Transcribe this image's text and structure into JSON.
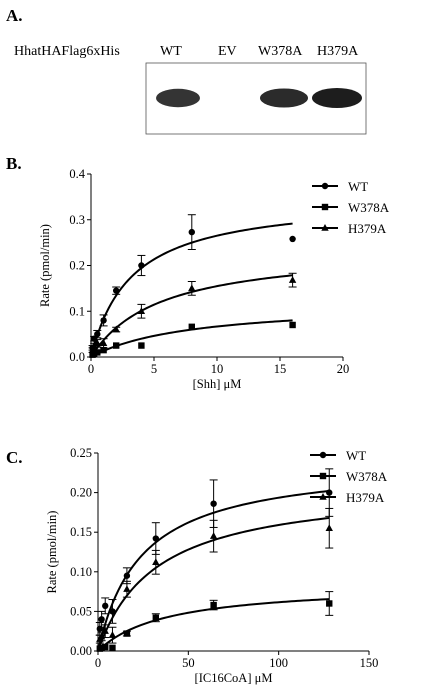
{
  "panel_a": {
    "label": "A.",
    "construct": "HhatHAFlag6xHis",
    "lanes": [
      "WT",
      "EV",
      "W378A",
      "H379A"
    ],
    "band_intensity": [
      0.75,
      0.0,
      0.85,
      1.0
    ]
  },
  "chart_data": [
    {
      "panel": "B.",
      "type": "scatter",
      "xlabel": "[Shh] μM",
      "ylabel": "Rate (pmol/min)",
      "xlim": [
        0,
        20
      ],
      "ylim": [
        0,
        0.4
      ],
      "xticks": [
        0,
        5,
        10,
        15,
        20
      ],
      "yticks": [
        0,
        0.1,
        0.2,
        0.3,
        0.4
      ],
      "ytick_labels": [
        "0.0",
        "0.1",
        "0.2",
        "0.3",
        "0.4"
      ],
      "legend_position": "top-right",
      "series": [
        {
          "name": "WT",
          "marker": "circle",
          "x": [
            0.125,
            0.25,
            0.5,
            1,
            2,
            4,
            8,
            16
          ],
          "y": [
            0.02,
            0.04,
            0.05,
            0.08,
            0.145,
            0.2,
            0.273,
            0.258
          ],
          "err": [
            0.005,
            0.005,
            0.008,
            0.012,
            0.008,
            0.022,
            0.038,
            0
          ],
          "vmax": 0.35,
          "km": 3.2
        },
        {
          "name": "W378A",
          "marker": "square",
          "x": [
            0.125,
            0.25,
            0.5,
            1,
            2,
            4,
            8,
            16
          ],
          "y": [
            0.005,
            0.008,
            0.01,
            0.015,
            0.025,
            0.025,
            0.066,
            0.07
          ],
          "err": [
            0,
            0,
            0,
            0,
            0,
            0,
            0,
            0
          ],
          "vmax": 0.12,
          "km": 8
        },
        {
          "name": "H379A",
          "marker": "triangle",
          "x": [
            0.125,
            0.25,
            0.5,
            1,
            2,
            4,
            8,
            16
          ],
          "y": [
            0.015,
            0.025,
            0.03,
            0.03,
            0.06,
            0.1,
            0.15,
            0.168
          ],
          "err": [
            0.005,
            0.005,
            0.008,
            0.01,
            0.005,
            0.015,
            0.015,
            0.015
          ],
          "vmax": 0.24,
          "km": 5.5
        }
      ]
    },
    {
      "panel": "C.",
      "type": "scatter",
      "xlabel": "[IC16CoA] μM",
      "ylabel": "Rate (pmol/min)",
      "xlim": [
        0,
        150
      ],
      "ylim": [
        0,
        0.25
      ],
      "xticks": [
        0,
        50,
        100,
        150
      ],
      "yticks": [
        0,
        0.05,
        0.1,
        0.15,
        0.2,
        0.25
      ],
      "ytick_labels": [
        "0.00",
        "0.05",
        "0.10",
        "0.15",
        "0.20",
        "0.25"
      ],
      "legend_position": "top-right",
      "series": [
        {
          "name": "WT",
          "marker": "circle",
          "x": [
            1,
            2,
            4,
            8,
            16,
            32,
            64,
            128
          ],
          "y": [
            0.028,
            0.04,
            0.057,
            0.05,
            0.095,
            0.142,
            0.186,
            0.2
          ],
          "err": [
            0.008,
            0.01,
            0.01,
            0.015,
            0.01,
            0.02,
            0.03,
            0.03
          ],
          "vmax": 0.24,
          "km": 24
        },
        {
          "name": "W378A",
          "marker": "square",
          "x": [
            1,
            2,
            4,
            8,
            16,
            32,
            64,
            128
          ],
          "y": [
            0.003,
            0.004,
            0.005,
            0.004,
            0.022,
            0.042,
            0.058,
            0.06
          ],
          "err": [
            0,
            0,
            0,
            0,
            0.003,
            0.005,
            0.006,
            0.015
          ],
          "vmax": 0.085,
          "km": 38
        },
        {
          "name": "H379A",
          "marker": "triangle",
          "x": [
            1,
            2,
            4,
            8,
            16,
            32,
            64,
            128
          ],
          "y": [
            0.015,
            0.018,
            0.025,
            0.02,
            0.078,
            0.112,
            0.145,
            0.155
          ],
          "err": [
            0.005,
            0.005,
            0.008,
            0.01,
            0.01,
            0.015,
            0.02,
            0.025
          ],
          "vmax": 0.21,
          "km": 32
        }
      ]
    }
  ]
}
